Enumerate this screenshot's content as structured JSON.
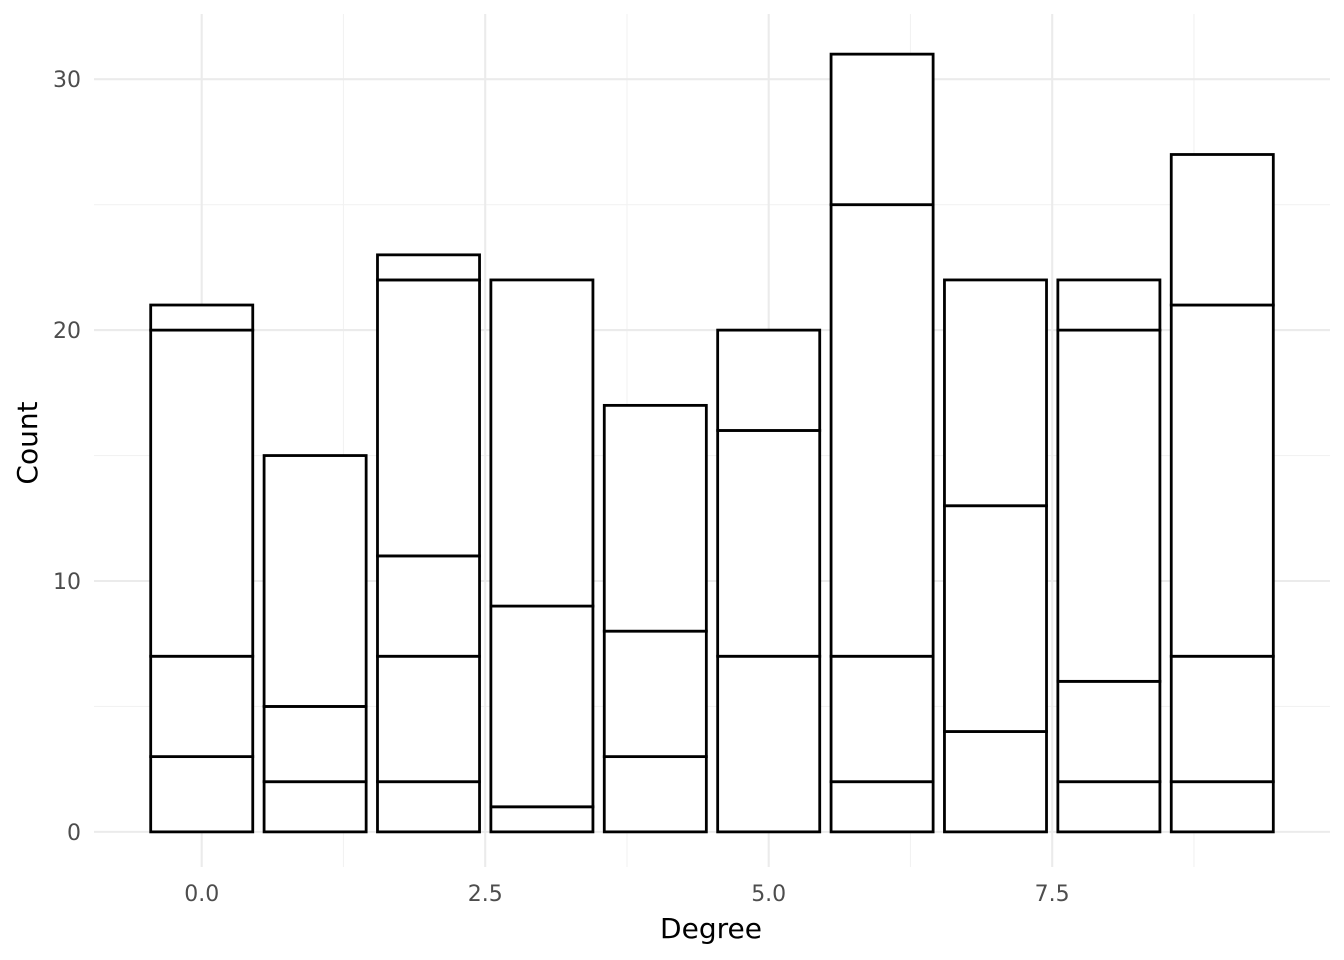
{
  "chart_data": {
    "type": "bar",
    "stacked": true,
    "xlabel": "Degree",
    "ylabel": "Count",
    "x": [
      0,
      1,
      2,
      3,
      4,
      5,
      6,
      7,
      8,
      9
    ],
    "bar_width": 0.9,
    "stacks": [
      [
        3,
        4,
        13,
        1
      ],
      [
        2,
        3,
        10
      ],
      [
        2,
        5,
        4,
        11,
        1
      ],
      [
        1,
        8,
        13
      ],
      [
        3,
        5,
        9
      ],
      [
        7,
        9,
        4
      ],
      [
        2,
        5,
        18,
        6
      ],
      [
        4,
        9,
        9
      ],
      [
        2,
        4,
        14,
        2
      ],
      [
        2,
        5,
        14,
        6
      ]
    ],
    "xlim": [
      -0.95,
      9.95
    ],
    "ylim": [
      -1.4,
      32.6
    ],
    "x_ticks": [
      0,
      2.5,
      5,
      7.5
    ],
    "x_tick_labels": [
      "0.0",
      "2.5",
      "5.0",
      "7.5"
    ],
    "x_minor_ticks": [
      1.25,
      3.75,
      6.25,
      8.75
    ],
    "y_ticks": [
      0,
      10,
      20,
      30
    ],
    "y_tick_labels": [
      "0",
      "10",
      "20",
      "30"
    ],
    "y_minor_ticks": [
      5,
      15,
      25
    ],
    "grid": true,
    "legend": "none"
  }
}
